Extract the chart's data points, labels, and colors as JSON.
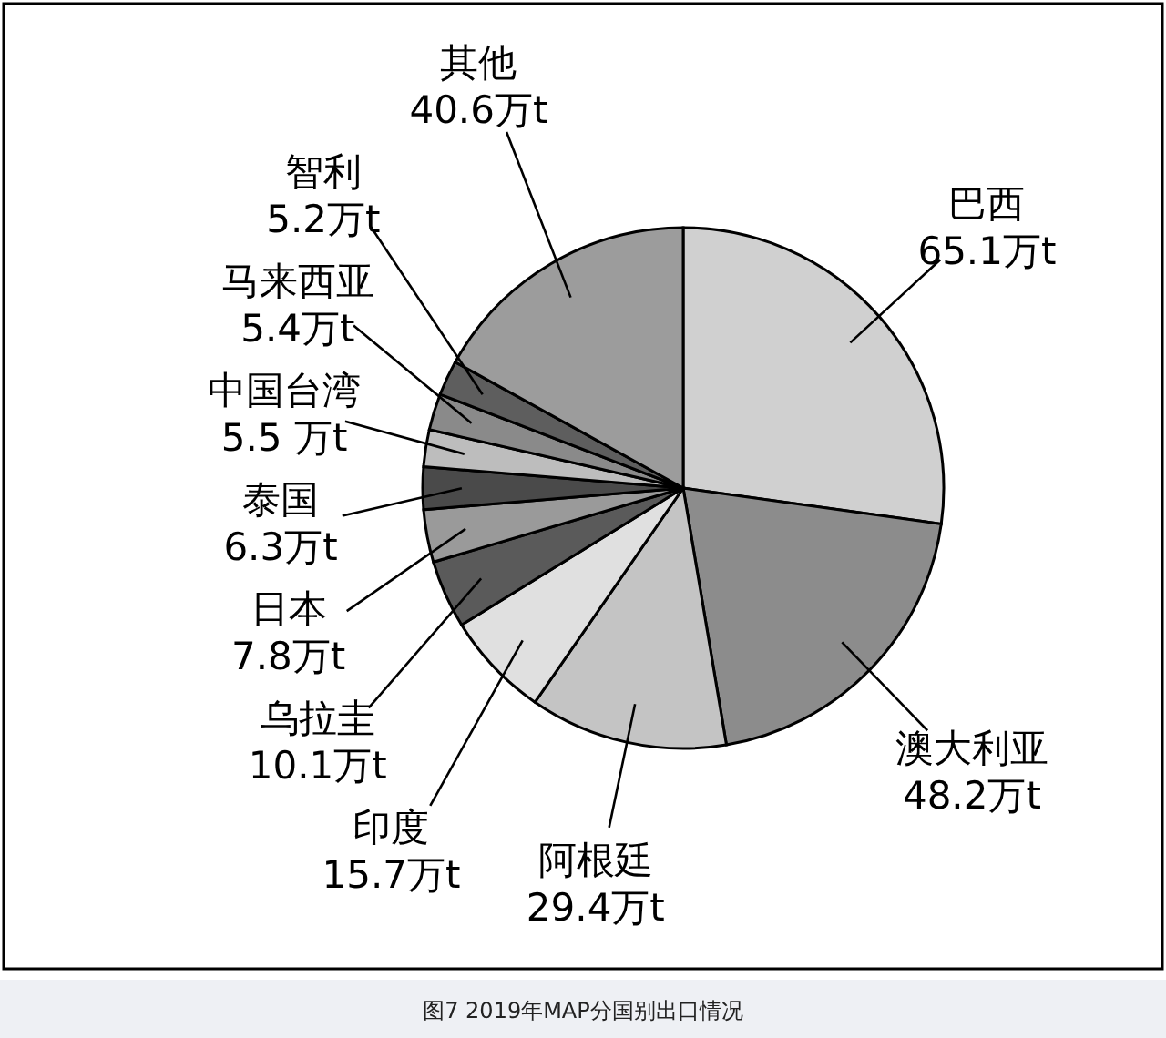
{
  "chart_data": {
    "type": "pie",
    "categories": [
      "巴西",
      "澳大利亚",
      "阿根廷",
      "印度",
      "乌拉圭",
      "日本",
      "泰国",
      "中国台湾",
      "马来西亚",
      "智利",
      "其他"
    ],
    "values": [
      65.1,
      48.2,
      29.4,
      15.7,
      10.1,
      7.8,
      6.3,
      5.5,
      5.4,
      5.2,
      40.6
    ],
    "value_labels": [
      "65.1万t",
      "48.2万t",
      "29.4万t",
      "15.7万t",
      "10.1万t",
      "7.8万t",
      "6.3万t",
      "5.5 万t",
      "5.4万t",
      "5.2万t",
      "40.6万t"
    ],
    "colors": [
      "#d0d0d0",
      "#8c8c8c",
      "#c4c4c4",
      "#e0e0e0",
      "#5a5a5a",
      "#9a9a9a",
      "#4a4a4a",
      "#bdbdbd",
      "#8a8a8a",
      "#5e5e5e",
      "#9c9c9c"
    ],
    "annotations": [
      "图7 2019年MAP分国别出口情况"
    ]
  }
}
